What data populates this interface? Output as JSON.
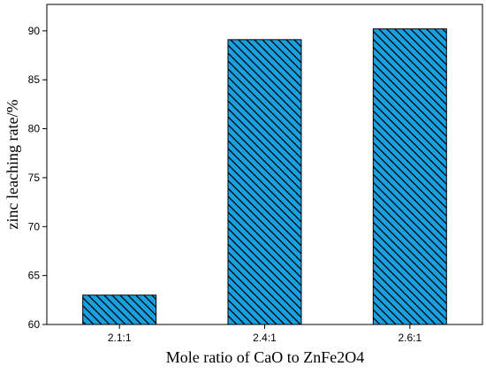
{
  "chart_data": {
    "type": "bar",
    "categories": [
      "2.1:1",
      "2.4:1",
      "2.6:1"
    ],
    "values": [
      63.0,
      89.1,
      90.2
    ],
    "xlabel": "Mole ratio of CaO to ZnFe2O4",
    "ylabel": "zinc leaching rate/%",
    "ylim": [
      60,
      92.7
    ],
    "yticks": [
      60,
      65,
      70,
      75,
      80,
      85,
      90
    ],
    "ytick_labels": [
      "60",
      "65",
      "70",
      "75",
      "80",
      "85",
      "90"
    ],
    "grid": false,
    "legend": "none",
    "bar_fill": "#1a9fe0",
    "bar_hatch": "diagonal",
    "bar_edge": "#000000"
  }
}
